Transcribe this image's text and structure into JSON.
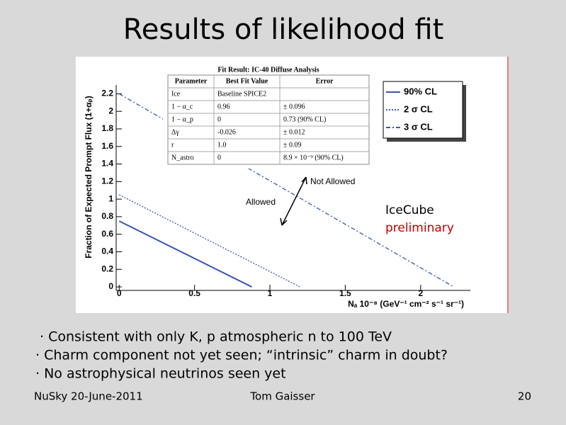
{
  "slide_title": "Results of likelihood fit",
  "bullets": [
    "· Consistent with only K, p atmospheric n to 100 TeV",
    "· Charm component not yet seen; “intrinsic” charm in doubt?",
    "· No astrophysical neutrinos seen yet"
  ],
  "footer": {
    "left": "NuSky 20-June-2011",
    "center": "Tom Gaisser",
    "right": "20"
  },
  "chart_data": {
    "type": "line",
    "x_label": "Nₐ 10⁻⁸ (GeV⁻¹ cm⁻² s⁻¹ sr⁻¹)",
    "y_label": "Fraction of Expected Prompt Flux (1+αₚ)",
    "xlim": [
      -0.02,
      2.33
    ],
    "ylim": [
      -0.04,
      2.3
    ],
    "xticks": [
      0,
      0.5,
      1,
      1.5,
      2
    ],
    "yticks": [
      0,
      0.2,
      0.4,
      0.6,
      0.8,
      1,
      1.2,
      1.4,
      1.6,
      1.8,
      2,
      2.2
    ],
    "series": [
      {
        "name": "90% CL",
        "color": "#3a55b4",
        "dash": "solid",
        "x": [
          0,
          0.88
        ],
        "values": [
          0.75,
          0
        ]
      },
      {
        "name": "2 σ CL",
        "color": "#3a55b4",
        "dash": "dotted",
        "x": [
          0,
          1.2
        ],
        "values": [
          1.05,
          0
        ]
      },
      {
        "name": "3 σ CL",
        "color": "#3a55b4",
        "dash": "dashdot",
        "x": [
          0,
          2.22
        ],
        "values": [
          2.2,
          0
        ]
      }
    ],
    "annotations": [
      "Not Allowed",
      "Allowed"
    ],
    "watermark": [
      "IceCube",
      "preliminary"
    ],
    "table": {
      "title": "Fit Result: IC-40 Diffuse Analysis",
      "header": [
        "Parameter",
        "Best Fit Value",
        "Error"
      ],
      "rows": [
        [
          "Ice",
          "Baseline SPICE2"
        ],
        [
          "1 − α_c",
          "0.96",
          "± 0.096"
        ],
        [
          "1 − α_p",
          "0",
          "0.73 (90% CL)"
        ],
        [
          "Δγ",
          "-0.026",
          "± 0.012"
        ],
        [
          "r",
          "1.0",
          "± 0.09"
        ],
        [
          "N_astro",
          "0",
          "8.9 × 10⁻⁹ (90% CL)"
        ]
      ]
    }
  }
}
